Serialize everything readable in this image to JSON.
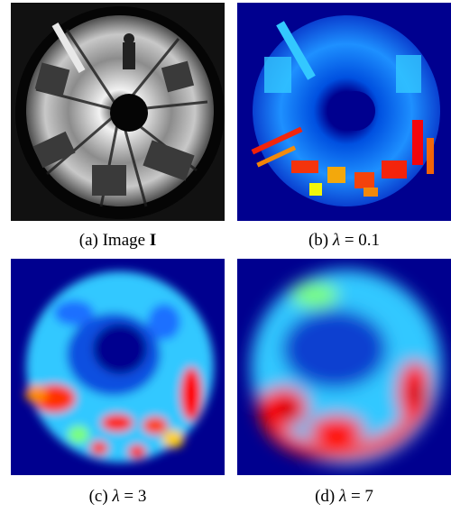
{
  "panels": [
    {
      "id": "a",
      "caption_prefix": "(a) Image ",
      "caption_bold": "I",
      "caption_symbol": "",
      "caption_value": ""
    },
    {
      "id": "b",
      "caption_prefix": "(b) ",
      "caption_bold": "",
      "caption_symbol": "λ",
      "caption_value": " = 0.1"
    },
    {
      "id": "c",
      "caption_prefix": "(c) ",
      "caption_bold": "",
      "caption_symbol": "λ",
      "caption_value": " = 3"
    },
    {
      "id": "d",
      "caption_prefix": "(d) ",
      "caption_bold": "",
      "caption_symbol": "λ",
      "caption_value": " = 7"
    }
  ],
  "colors": {
    "jet_background": "#00008f",
    "jet_light_blue": "#1e90ff",
    "jet_cyan": "#33c8ff",
    "jet_green": "#7cff7a",
    "jet_yellow": "#ffff00",
    "jet_orange": "#ff8c00",
    "jet_red": "#ff0000",
    "jet_dark_red": "#8b0000",
    "gray_dark": "#2a2a2a",
    "gray_light": "#d9d9d9"
  }
}
